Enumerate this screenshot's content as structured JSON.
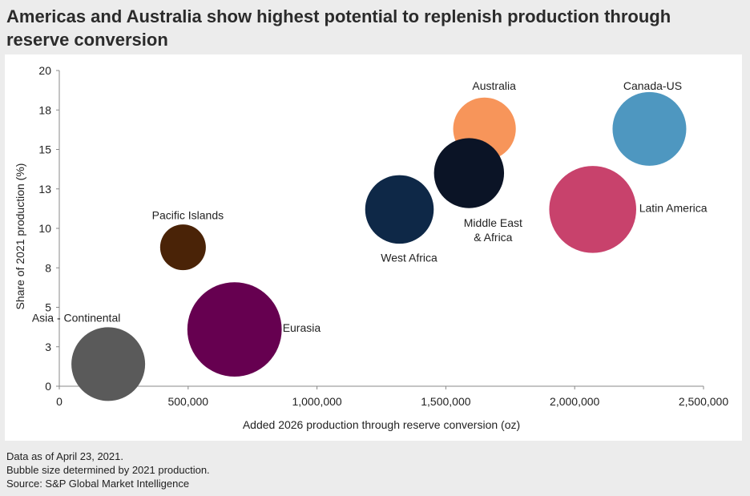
{
  "title": "Americas and Australia show highest potential to replenish production through reserve conversion",
  "chart_data": {
    "type": "bubble",
    "title": "Americas and Australia show highest potential to replenish production through reserve conversion",
    "xlabel": "Added 2026 production through reserve conversion (oz)",
    "ylabel": "Share of 2021 production (%)",
    "xlim": [
      0,
      2500000
    ],
    "ylim": [
      0,
      20
    ],
    "x_ticks": [
      0,
      500000,
      1000000,
      1500000,
      2000000,
      2500000
    ],
    "x_tick_labels": [
      "0",
      "500,000",
      "1,000,000",
      "1,500,000",
      "2,000,000",
      "2,500,000"
    ],
    "y_ticks": [
      0,
      2.5,
      5,
      7.5,
      10,
      12.5,
      15,
      17.5,
      20
    ],
    "y_tick_labels": [
      "0",
      "3",
      "5",
      "8",
      "10",
      "13",
      "15",
      "18",
      "20"
    ],
    "size_note": "Bubble size determined by 2021 production.",
    "series": [
      {
        "name": "Asia - Continental",
        "x": 190000,
        "y": 1.4,
        "size": 1.0,
        "color": "#5a5a5a"
      },
      {
        "name": "Pacific Islands",
        "x": 480000,
        "y": 8.8,
        "size": 0.62,
        "color": "#4a2307"
      },
      {
        "name": "Eurasia",
        "x": 680000,
        "y": 3.6,
        "size": 1.28,
        "color": "#660050"
      },
      {
        "name": "West Africa",
        "x": 1320000,
        "y": 11.2,
        "size": 0.93,
        "color": "#0e2847"
      },
      {
        "name": "Australia",
        "x": 1650000,
        "y": 16.3,
        "size": 0.85,
        "color": "#f7955a"
      },
      {
        "name": "Middle East\n& Africa",
        "x": 1590000,
        "y": 13.5,
        "size": 0.95,
        "color": "#0b1426"
      },
      {
        "name": "Latin America",
        "x": 2070000,
        "y": 11.2,
        "size": 1.18,
        "color": "#c8426c"
      },
      {
        "name": "Canada-US",
        "x": 2290000,
        "y": 16.3,
        "size": 1.0,
        "color": "#4e97c0"
      }
    ]
  },
  "footnotes": {
    "date": "Data as of April 23, 2021.",
    "bubble": "Bubble size determined by 2021 production.",
    "source": "Source: S&P Global Market Intelligence"
  }
}
